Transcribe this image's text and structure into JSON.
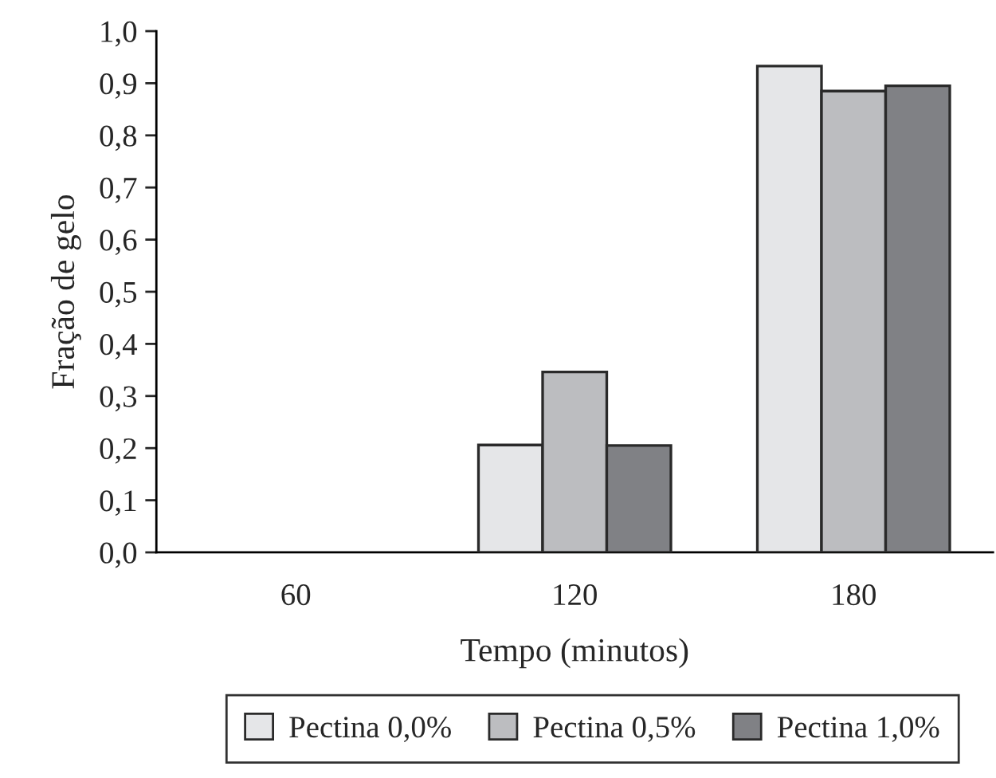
{
  "chart_data": {
    "type": "bar",
    "xlabel": "Tempo (minutos)",
    "ylabel": "Fração de gelo",
    "categories": [
      "60",
      "120",
      "180"
    ],
    "series": [
      {
        "name": "Pectina 0,0%",
        "color": "#e5e6e8",
        "values": [
          null,
          0.206,
          0.933
        ]
      },
      {
        "name": "Pectina 0,5%",
        "color": "#bcbdc0",
        "values": [
          null,
          0.346,
          0.885
        ]
      },
      {
        "name": "Pectina 1,0%",
        "color": "#808185",
        "values": [
          null,
          0.205,
          0.895
        ]
      }
    ],
    "ylim": [
      0,
      1.0
    ],
    "yticks": [
      {
        "value": 0,
        "label": "0,0"
      },
      {
        "value": 0.1,
        "label": "0,1"
      },
      {
        "value": 0.2,
        "label": "0,2"
      },
      {
        "value": 0.3,
        "label": "0,3"
      },
      {
        "value": 0.4,
        "label": "0,4"
      },
      {
        "value": 0.5,
        "label": "0,5"
      },
      {
        "value": 0.6,
        "label": "0,6"
      },
      {
        "value": 0.7,
        "label": "0,7"
      },
      {
        "value": 0.8,
        "label": "0,8"
      },
      {
        "value": 0.9,
        "label": "0,9"
      },
      {
        "value": 1.0,
        "label": "1,0"
      }
    ],
    "grid": false,
    "legend": "bottom"
  }
}
